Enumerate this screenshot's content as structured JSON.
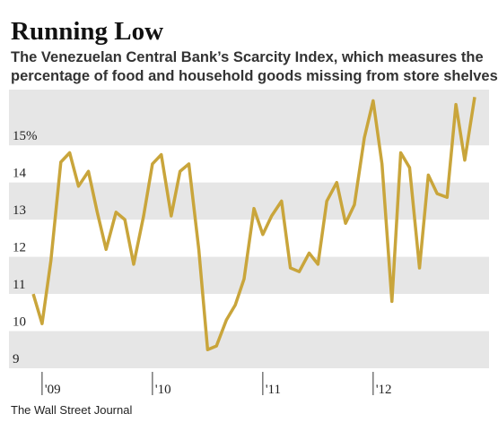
{
  "chart_data": {
    "type": "line",
    "title": "Running Low",
    "subtitle": [
      "The Venezuelan Central Bank’s Scarcity Index, which measures the",
      "percentage of food and household goods missing from store shelves"
    ],
    "source": "The Wall Street Journal",
    "x": [
      2008.92,
      2009.0,
      2009.08,
      2009.17,
      2009.25,
      2009.33,
      2009.42,
      2009.5,
      2009.58,
      2009.67,
      2009.75,
      2009.83,
      2009.92,
      2010.0,
      2010.08,
      2010.17,
      2010.25,
      2010.33,
      2010.42,
      2010.5,
      2010.58,
      2010.67,
      2010.75,
      2010.83,
      2010.92,
      2011.0,
      2011.08,
      2011.17,
      2011.25,
      2011.33,
      2011.42,
      2011.5,
      2011.58,
      2011.67,
      2011.75,
      2011.83,
      2011.92,
      2012.0,
      2012.08,
      2012.17,
      2012.25,
      2012.33,
      2012.42,
      2012.5,
      2012.58,
      2012.67,
      2012.75,
      2012.83,
      2012.92
    ],
    "series": [
      {
        "name": "Scarcity Index",
        "color": "#c9a53b",
        "values": [
          11.0,
          10.2,
          11.9,
          14.55,
          14.8,
          13.9,
          14.3,
          13.2,
          12.2,
          13.2,
          13.0,
          11.8,
          13.1,
          14.5,
          14.75,
          13.1,
          14.3,
          14.5,
          12.2,
          9.5,
          9.6,
          10.3,
          10.7,
          11.4,
          13.3,
          12.6,
          13.1,
          13.5,
          11.7,
          11.6,
          12.1,
          11.8,
          13.5,
          14.0,
          12.9,
          13.4,
          15.2,
          16.2,
          14.5,
          10.8,
          14.8,
          14.4,
          11.7,
          14.2,
          13.7,
          13.6,
          16.1,
          14.6,
          16.3
        ]
      }
    ],
    "xlim": [
      2008.7,
      2013.05
    ],
    "xticks": [
      {
        "value": 2009,
        "label": "'09"
      },
      {
        "value": 2010,
        "label": "'10"
      },
      {
        "value": 2011,
        "label": "'11"
      },
      {
        "value": 2012,
        "label": "'12"
      }
    ],
    "ylim": [
      9,
      16.5
    ],
    "yticks": [
      9,
      10,
      11,
      12,
      13,
      14,
      {
        "value": 15,
        "label": "15%"
      }
    ],
    "grid": true
  }
}
